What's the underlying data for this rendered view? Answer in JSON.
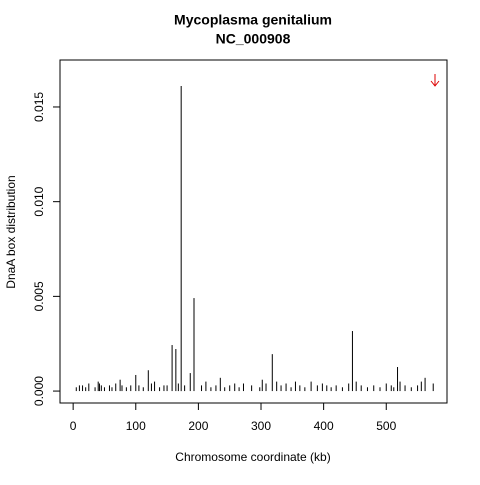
{
  "chart_data": {
    "type": "spike",
    "title": [
      "Mycoplasma genitalium",
      "NC_000908"
    ],
    "x_label": "Chromosome coordinate (kb)",
    "y_label": "DnaA box distribution",
    "color": "#000000",
    "xlim": [
      -21,
      597
    ],
    "ylim": [
      -0.00063,
      0.01748
    ],
    "xticks": [
      0,
      100,
      200,
      300,
      400,
      500
    ],
    "yticks": [
      {
        "value": 0,
        "label": "0.000"
      },
      {
        "value": 0.005,
        "label": "0.005"
      },
      {
        "value": 0.01,
        "label": "0.010"
      },
      {
        "value": 0.015,
        "label": "0.015"
      }
    ],
    "x": [
      5,
      10,
      15,
      20,
      25,
      35,
      40,
      42,
      45,
      50,
      58,
      62,
      68,
      75,
      78,
      85,
      92,
      100,
      105,
      112,
      120,
      125,
      130,
      138,
      145,
      150,
      158,
      164,
      168,
      172.5,
      178,
      187,
      193,
      205,
      212,
      220,
      228,
      235,
      242,
      250,
      258,
      265,
      272,
      285,
      298,
      302,
      308,
      318,
      325,
      332,
      340,
      348,
      355,
      362,
      370,
      380,
      390,
      398,
      405,
      412,
      420,
      430,
      440,
      446,
      452,
      460,
      470,
      480,
      490,
      500,
      508,
      512,
      518,
      522,
      530,
      540,
      550,
      556,
      562,
      575
    ],
    "values": [
      0.0002,
      0.0003,
      0.0003,
      0.0002,
      0.0004,
      0.0002,
      0.0005,
      0.0004,
      0.0003,
      0.0002,
      0.0003,
      0.0002,
      0.0004,
      0.0006,
      0.0003,
      0.0002,
      0.0003,
      0.00085,
      0.0003,
      0.0002,
      0.0011,
      0.0004,
      0.0005,
      0.0002,
      0.0003,
      0.0003,
      0.00243,
      0.00222,
      0.0004,
      0.01611,
      0.0003,
      0.00095,
      0.00491,
      0.0003,
      0.0005,
      0.0002,
      0.0003,
      0.0007,
      0.0002,
      0.0003,
      0.0004,
      0.0002,
      0.0004,
      0.0003,
      0.0002,
      0.0006,
      0.0004,
      0.00195,
      0.0005,
      0.0003,
      0.0004,
      0.0002,
      0.0005,
      0.0003,
      0.0002,
      0.0005,
      0.0003,
      0.0004,
      0.0003,
      0.0002,
      0.0003,
      0.0002,
      0.0004,
      0.00317,
      0.0005,
      0.0003,
      0.0002,
      0.0003,
      0.0002,
      0.0004,
      0.0003,
      0.0002,
      0.00127,
      0.0005,
      0.0003,
      0.0002,
      0.0003,
      0.0005,
      0.0007,
      0.0004
    ]
  }
}
